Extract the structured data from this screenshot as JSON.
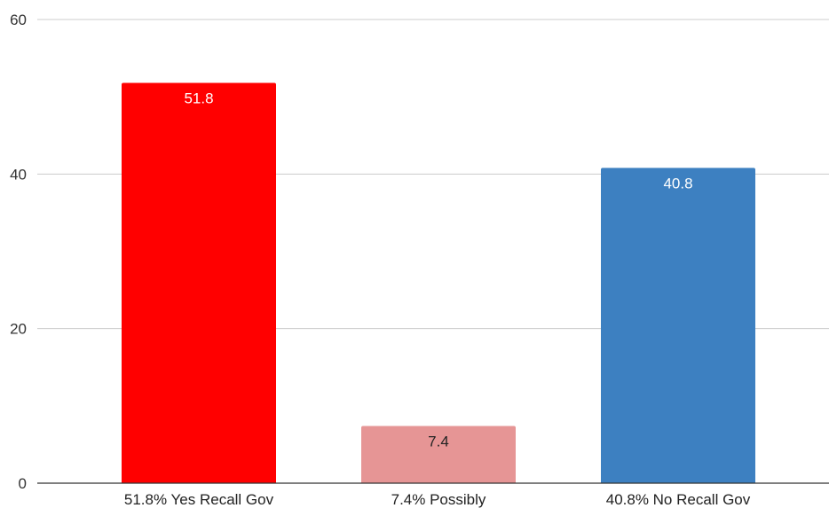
{
  "chart_data": {
    "type": "bar",
    "title": "",
    "xlabel": "",
    "ylabel": "",
    "categories": [
      "51.8% Yes Recall Gov",
      "7.4% Possibly",
      "40.8% No Recall Gov"
    ],
    "values": [
      51.8,
      7.4,
      40.8
    ],
    "value_labels": [
      "51.8",
      "7.4",
      "40.8"
    ],
    "colors": [
      "#ff0000",
      "#e69595",
      "#3d80c1"
    ],
    "label_colors": [
      "#ffffff",
      "#222222",
      "#ffffff"
    ],
    "ylim": [
      0,
      60
    ],
    "yticks": [
      0,
      20,
      40,
      60
    ],
    "ytick_labels": [
      "0",
      "20",
      "40",
      "60"
    ],
    "grid": true,
    "legend": "none"
  }
}
